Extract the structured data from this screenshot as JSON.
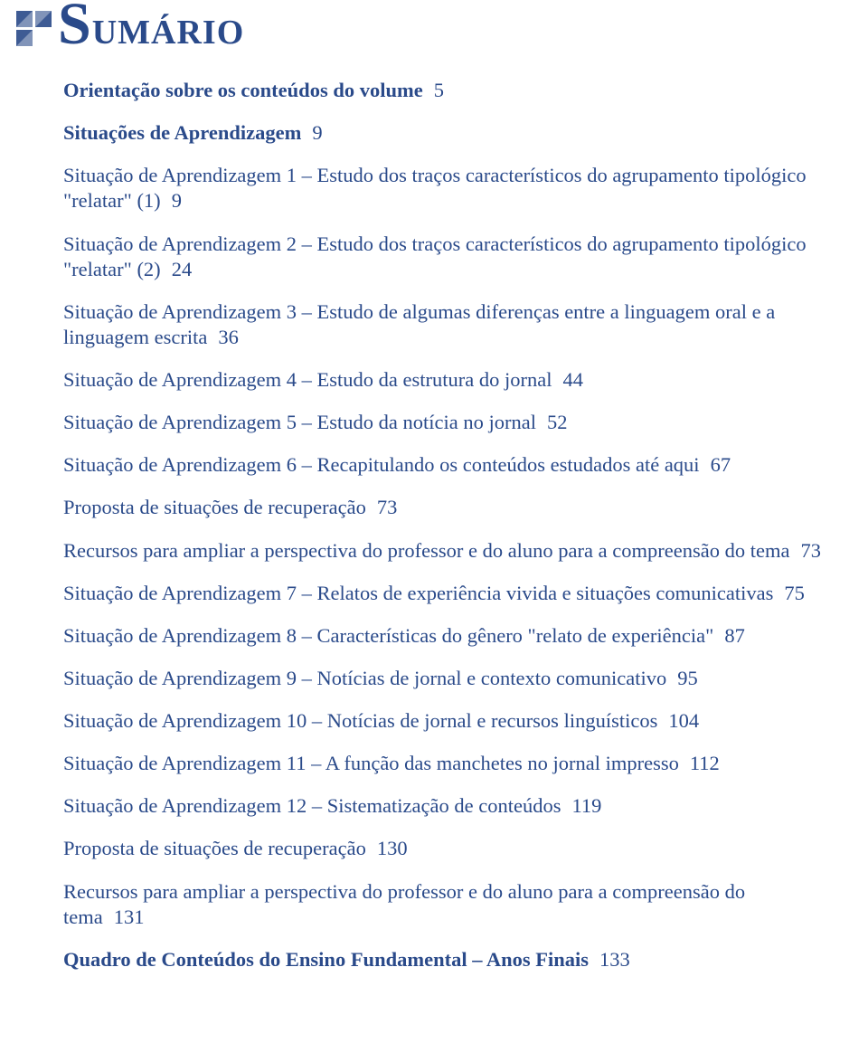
{
  "colors": {
    "text": "#2a4a8a",
    "logo": "#3e5b94",
    "background": "#ffffff"
  },
  "heading": {
    "first_letter": "S",
    "rest": "UMÁRIO"
  },
  "entries": [
    {
      "bold": true,
      "text": "Orientação sobre os conteúdos do volume",
      "page": "5"
    },
    {
      "bold": true,
      "text": "Situações de Aprendizagem",
      "page": "9"
    },
    {
      "bold": false,
      "text": "Situação de Aprendizagem 1 – Estudo dos traços característicos do agrupamento tipológico \"relatar\" (1)",
      "page": "9"
    },
    {
      "bold": false,
      "text": "Situação de Aprendizagem 2 – Estudo dos traços característicos do agrupamento tipológico \"relatar\" (2)",
      "page": "24"
    },
    {
      "bold": false,
      "text": "Situação de Aprendizagem 3 – Estudo de algumas diferenças entre a linguagem oral e a linguagem escrita",
      "page": "36"
    },
    {
      "bold": false,
      "text": "Situação de Aprendizagem 4 – Estudo da estrutura do jornal",
      "page": "44"
    },
    {
      "bold": false,
      "text": "Situação de Aprendizagem 5 – Estudo da notícia no jornal",
      "page": "52"
    },
    {
      "bold": false,
      "text": "Situação de Aprendizagem 6 – Recapitulando os conteúdos estudados até aqui",
      "page": "67"
    },
    {
      "bold": false,
      "text": "Proposta de situações de recuperação",
      "page": "73"
    },
    {
      "bold": false,
      "text": "Recursos para ampliar a perspectiva do professor e do aluno para a compreensão do tema",
      "page": "73"
    },
    {
      "bold": false,
      "text": "Situação de Aprendizagem 7 – Relatos de experiência vivida e situações comunicativas",
      "page": "75"
    },
    {
      "bold": false,
      "text": "Situação de Aprendizagem 8 – Características do gênero \"relato de experiência\"",
      "page": "87"
    },
    {
      "bold": false,
      "text": "Situação de Aprendizagem 9 – Notícias de jornal e contexto comunicativo",
      "page": "95"
    },
    {
      "bold": false,
      "text": "Situação de Aprendizagem 10 – Notícias de jornal e recursos linguísticos",
      "page": "104"
    },
    {
      "bold": false,
      "text": "Situação de Aprendizagem 11 – A função das manchetes no jornal impresso",
      "page": "112"
    },
    {
      "bold": false,
      "text": "Situação de Aprendizagem 12 – Sistematização de conteúdos",
      "page": "119"
    },
    {
      "bold": false,
      "text": "Proposta de situações de recuperação",
      "page": "130"
    },
    {
      "bold": false,
      "text": "Recursos para ampliar a perspectiva do professor e do aluno para a compreensão do tema",
      "page": "131"
    },
    {
      "bold": true,
      "text": "Quadro de Conteúdos do Ensino Fundamental – Anos Finais",
      "page": "133"
    }
  ]
}
